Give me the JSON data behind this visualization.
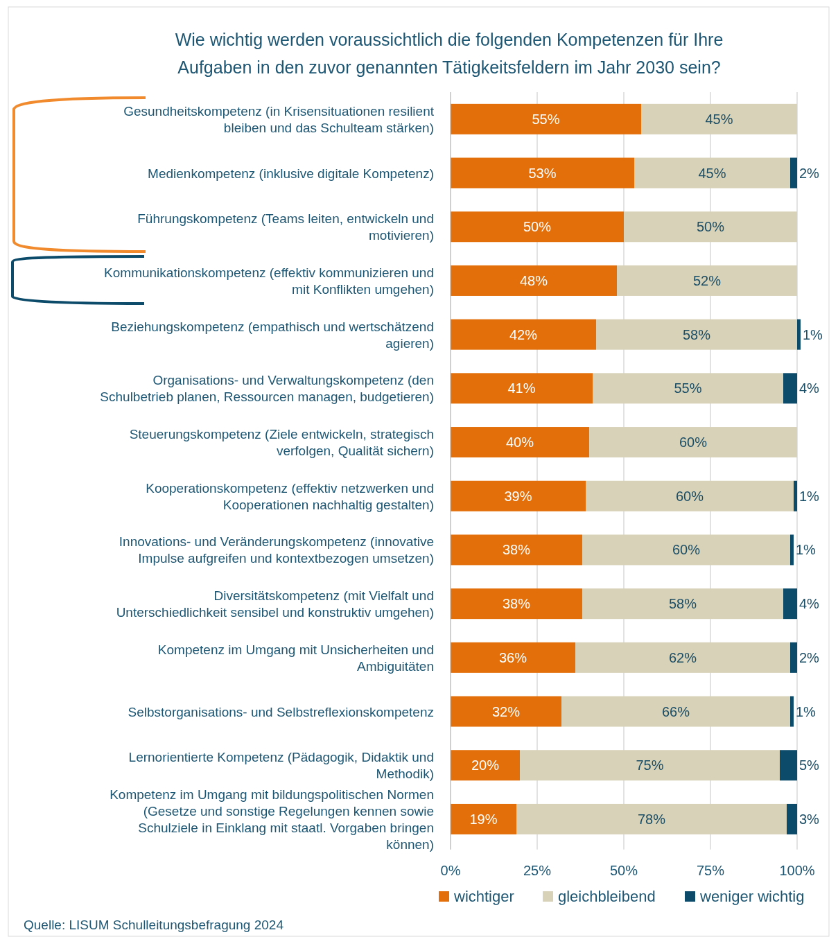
{
  "chart_data": {
    "type": "bar",
    "orientation": "horizontal",
    "stacked": true,
    "title": "Wie wichtig werden voraussichtlich die folgenden Kompetenzen für Ihre Aufgaben in den zuvor genannten Tätigkeitsfeldern im Jahr 2030 sein?",
    "categories": [
      "Gesundheitskompetenz (in Krisensituationen resilient bleiben und das Schulteam stärken)",
      "Medienkompetenz (inklusive digitale Kompetenz)",
      "Führungskompetenz (Teams leiten, entwickeln und motivieren)",
      "Kommunikationskompetenz (effektiv kommunizieren und mit Konflikten umgehen)",
      "Beziehungskompetenz (empathisch und wertschätzend agieren)",
      "Organisations- und Verwaltungskompetenz (den Schulbetrieb planen, Ressourcen managen, budgetieren)",
      "Steuerungskompetenz (Ziele entwickeln, strategisch verfolgen, Qualität sichern)",
      "Kooperationskompetenz (effektiv netzwerken und Kooperationen nachhaltig gestalten)",
      "Innovations- und Veränderungskompetenz (innovative Impulse aufgreifen und kontextbezogen umsetzen)",
      "Diversitätskompetenz (mit Vielfalt und Unterschiedlichkeit sensibel und konstruktiv umgehen)",
      "Kompetenz im Umgang mit Unsicherheiten und Ambiguitäten",
      "Selbstorganisations- und Selbstreflexionskompetenz",
      "Lernorientierte Kompetenz (Pädagogik, Didaktik und Methodik)",
      "Kompetenz im Umgang mit bildungspolitischen Normen (Gesetze und sonstige Regelungen kennen sowie Schulziele in Einklang mit staatl. Vorgaben bringen können)"
    ],
    "series": [
      {
        "name": "wichtiger",
        "color": "#e36f0a",
        "values": [
          55,
          53,
          50,
          48,
          42,
          41,
          40,
          39,
          38,
          38,
          36,
          32,
          20,
          19
        ],
        "value_labels": [
          "55%",
          "53%",
          "50%",
          "48%",
          "42%",
          "41%",
          "40%",
          "39%",
          "38%",
          "38%",
          "36%",
          "32%",
          "20%",
          "19%"
        ]
      },
      {
        "name": "gleichbleibend",
        "color": "#d8d2b8",
        "values": [
          45,
          45,
          50,
          52,
          58,
          55,
          60,
          60,
          60,
          58,
          62,
          66,
          75,
          78
        ],
        "value_labels": [
          "45%",
          "45%",
          "50%",
          "52%",
          "58%",
          "55%",
          "60%",
          "60%",
          "60%",
          "58%",
          "62%",
          "66%",
          "75%",
          "78%"
        ]
      },
      {
        "name": "weniger wichtig",
        "color": "#0d4b6b",
        "values": [
          null,
          2,
          null,
          null,
          1,
          4,
          null,
          1,
          1,
          4,
          2,
          1,
          5,
          3
        ],
        "value_labels": [
          null,
          "2%",
          null,
          null,
          "1%",
          "4%",
          null,
          "1%",
          "1%",
          "4%",
          "2%",
          "1%",
          "5%",
          "3%"
        ]
      }
    ],
    "xlim": [
      0,
      101
    ],
    "xticks": [
      {
        "value": 0,
        "label": "0%"
      },
      {
        "value": 25,
        "label": "25%"
      },
      {
        "value": 50,
        "label": "50%"
      },
      {
        "value": 75,
        "label": "75%"
      },
      {
        "value": 100,
        "label": "100%"
      }
    ],
    "grid": "x",
    "legend": "bottom",
    "annotations": [
      "Quelle: LISUM Schulleitungsbefragung 2024"
    ]
  }
}
